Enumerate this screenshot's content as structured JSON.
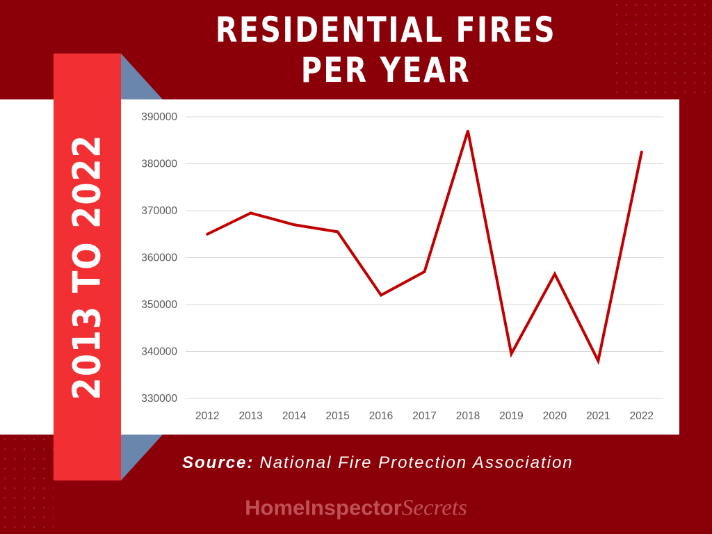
{
  "title": {
    "line1": "RESIDENTIAL FIRES",
    "line2": "PER YEAR"
  },
  "side_label": "2013 TO 2022",
  "source": {
    "label": "Source:",
    "text": "National Fire Protection Association"
  },
  "logo": {
    "text": "HomeInspector",
    "script": "Secrets"
  },
  "colors": {
    "background": "#8b0008",
    "banner": "#f23034",
    "line": "#c00000",
    "fold": "#6b86ad"
  },
  "chart_data": {
    "type": "line",
    "categories": [
      "2012",
      "2013",
      "2014",
      "2015",
      "2016",
      "2017",
      "2018",
      "2019",
      "2020",
      "2021",
      "2022"
    ],
    "series": [
      {
        "values": [
          365000,
          369500,
          367000,
          365500,
          352000,
          357000,
          387000,
          339500,
          356500,
          338000,
          382500
        ]
      }
    ],
    "yticks": [
      330000,
      340000,
      350000,
      360000,
      370000,
      380000,
      390000
    ],
    "ylim": [
      330000,
      390000
    ],
    "grid": true,
    "legend": "none",
    "title": "",
    "xlabel": "",
    "ylabel": ""
  }
}
